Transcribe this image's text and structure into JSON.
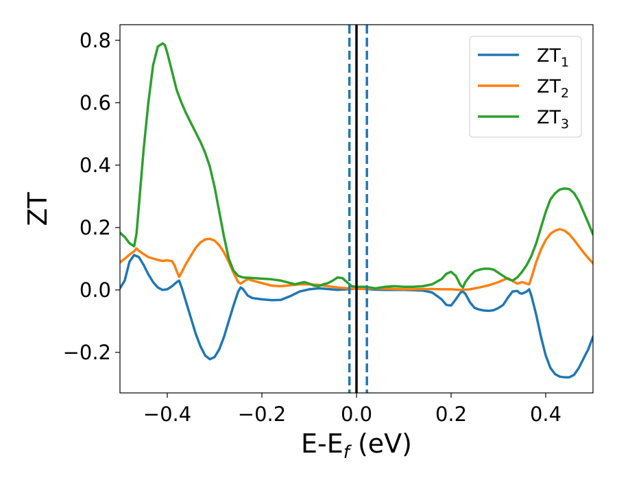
{
  "chart_data": {
    "type": "line",
    "xlabel": "E-E",
    "xlabel_sub": "f",
    "xlabel_unit": " (eV)",
    "ylabel": "ZT",
    "xlim": [
      -0.5,
      0.5
    ],
    "ylim": [
      -0.33,
      0.85
    ],
    "xticks": [
      -0.4,
      -0.2,
      0.0,
      0.2,
      0.4
    ],
    "xtick_labels": [
      "−0.4",
      "−0.2",
      "0.0",
      "0.2",
      "0.4"
    ],
    "yticks": [
      -0.2,
      0.0,
      0.2,
      0.4,
      0.6,
      0.8
    ],
    "ytick_labels": [
      "−0.2",
      "0.0",
      "0.2",
      "0.4",
      "0.6",
      "0.8"
    ],
    "grid": false,
    "legend_position": "top-right",
    "vertical_lines": [
      {
        "x": 0.0,
        "style": "solid",
        "color": "#000000"
      },
      {
        "x": -0.015,
        "style": "dashed",
        "color": "#1f77b4"
      },
      {
        "x": 0.022,
        "style": "dashed",
        "color": "#1f77b4"
      }
    ],
    "series": [
      {
        "name": "ZT",
        "sub": "1",
        "color": "#1f77b4",
        "points": [
          [
            -0.5,
            0.005
          ],
          [
            -0.49,
            0.03
          ],
          [
            -0.48,
            0.09
          ],
          [
            -0.47,
            0.112
          ],
          [
            -0.46,
            0.105
          ],
          [
            -0.45,
            0.08
          ],
          [
            -0.44,
            0.05
          ],
          [
            -0.43,
            0.025
          ],
          [
            -0.42,
            0.008
          ],
          [
            -0.41,
            0.0
          ],
          [
            -0.4,
            0.002
          ],
          [
            -0.39,
            0.012
          ],
          [
            -0.38,
            0.025
          ],
          [
            -0.375,
            0.03
          ],
          [
            -0.37,
            0.01
          ],
          [
            -0.36,
            -0.04
          ],
          [
            -0.35,
            -0.09
          ],
          [
            -0.34,
            -0.14
          ],
          [
            -0.33,
            -0.18
          ],
          [
            -0.32,
            -0.21
          ],
          [
            -0.31,
            -0.222
          ],
          [
            -0.3,
            -0.215
          ],
          [
            -0.29,
            -0.19
          ],
          [
            -0.28,
            -0.15
          ],
          [
            -0.27,
            -0.1
          ],
          [
            -0.26,
            -0.05
          ],
          [
            -0.25,
            -0.005
          ],
          [
            -0.245,
            0.008
          ],
          [
            -0.24,
            0.003
          ],
          [
            -0.23,
            -0.018
          ],
          [
            -0.22,
            -0.026
          ],
          [
            -0.2,
            -0.03
          ],
          [
            -0.18,
            -0.033
          ],
          [
            -0.16,
            -0.032
          ],
          [
            -0.14,
            -0.02
          ],
          [
            -0.12,
            -0.005
          ],
          [
            -0.1,
            0.002
          ],
          [
            -0.08,
            0.005
          ],
          [
            -0.06,
            0.003
          ],
          [
            -0.04,
            0.0
          ],
          [
            -0.02,
            0.002
          ],
          [
            0.0,
            0.004
          ],
          [
            0.02,
            0.003
          ],
          [
            0.04,
            0.001
          ],
          [
            0.06,
            0.0
          ],
          [
            0.08,
            0.0
          ],
          [
            0.1,
            0.0
          ],
          [
            0.12,
            -0.001
          ],
          [
            0.14,
            -0.002
          ],
          [
            0.16,
            -0.008
          ],
          [
            0.18,
            -0.03
          ],
          [
            0.19,
            -0.048
          ],
          [
            0.2,
            -0.05
          ],
          [
            0.21,
            -0.03
          ],
          [
            0.22,
            -0.008
          ],
          [
            0.225,
            -0.005
          ],
          [
            0.23,
            -0.012
          ],
          [
            0.24,
            -0.04
          ],
          [
            0.25,
            -0.058
          ],
          [
            0.26,
            -0.063
          ],
          [
            0.27,
            -0.066
          ],
          [
            0.28,
            -0.067
          ],
          [
            0.29,
            -0.065
          ],
          [
            0.3,
            -0.058
          ],
          [
            0.31,
            -0.048
          ],
          [
            0.32,
            -0.025
          ],
          [
            0.33,
            -0.005
          ],
          [
            0.34,
            -0.003
          ],
          [
            0.345,
            -0.01
          ],
          [
            0.35,
            -0.012
          ],
          [
            0.36,
            -0.005
          ],
          [
            0.365,
            0.002
          ],
          [
            0.37,
            -0.02
          ],
          [
            0.38,
            -0.08
          ],
          [
            0.39,
            -0.15
          ],
          [
            0.4,
            -0.21
          ],
          [
            0.41,
            -0.25
          ],
          [
            0.42,
            -0.27
          ],
          [
            0.43,
            -0.278
          ],
          [
            0.44,
            -0.28
          ],
          [
            0.45,
            -0.28
          ],
          [
            0.46,
            -0.272
          ],
          [
            0.47,
            -0.25
          ],
          [
            0.48,
            -0.22
          ],
          [
            0.49,
            -0.19
          ],
          [
            0.5,
            -0.15
          ]
        ]
      },
      {
        "name": "ZT",
        "sub": "2",
        "color": "#ff7f0e",
        "points": [
          [
            -0.5,
            0.088
          ],
          [
            -0.49,
            0.1
          ],
          [
            -0.48,
            0.113
          ],
          [
            -0.47,
            0.124
          ],
          [
            -0.465,
            0.133
          ],
          [
            -0.46,
            0.125
          ],
          [
            -0.45,
            0.115
          ],
          [
            -0.44,
            0.105
          ],
          [
            -0.42,
            0.096
          ],
          [
            -0.41,
            0.093
          ],
          [
            -0.4,
            0.095
          ],
          [
            -0.39,
            0.092
          ],
          [
            -0.385,
            0.08
          ],
          [
            -0.38,
            0.06
          ],
          [
            -0.375,
            0.042
          ],
          [
            -0.37,
            0.055
          ],
          [
            -0.36,
            0.085
          ],
          [
            -0.35,
            0.11
          ],
          [
            -0.34,
            0.135
          ],
          [
            -0.33,
            0.152
          ],
          [
            -0.32,
            0.162
          ],
          [
            -0.31,
            0.164
          ],
          [
            -0.3,
            0.158
          ],
          [
            -0.29,
            0.143
          ],
          [
            -0.28,
            0.12
          ],
          [
            -0.27,
            0.09
          ],
          [
            -0.26,
            0.055
          ],
          [
            -0.25,
            0.025
          ],
          [
            -0.245,
            0.02
          ],
          [
            -0.24,
            0.025
          ],
          [
            -0.23,
            0.035
          ],
          [
            -0.22,
            0.03
          ],
          [
            -0.2,
            0.022
          ],
          [
            -0.18,
            0.014
          ],
          [
            -0.16,
            0.012
          ],
          [
            -0.14,
            0.015
          ],
          [
            -0.12,
            0.018
          ],
          [
            -0.1,
            0.018
          ],
          [
            -0.08,
            0.016
          ],
          [
            -0.06,
            0.012
          ],
          [
            -0.04,
            0.008
          ],
          [
            -0.02,
            0.005
          ],
          [
            0.0,
            0.003
          ],
          [
            0.02,
            0.004
          ],
          [
            0.04,
            0.005
          ],
          [
            0.06,
            0.004
          ],
          [
            0.08,
            0.003
          ],
          [
            0.1,
            0.002
          ],
          [
            0.12,
            0.002
          ],
          [
            0.14,
            0.003
          ],
          [
            0.16,
            0.003
          ],
          [
            0.18,
            0.002
          ],
          [
            0.2,
            0.002
          ],
          [
            0.22,
            0.0
          ],
          [
            0.24,
            0.002
          ],
          [
            0.26,
            0.008
          ],
          [
            0.28,
            0.015
          ],
          [
            0.3,
            0.025
          ],
          [
            0.32,
            0.038
          ],
          [
            0.34,
            0.02
          ],
          [
            0.35,
            0.025
          ],
          [
            0.36,
            0.02
          ],
          [
            0.365,
            0.018
          ],
          [
            0.37,
            0.04
          ],
          [
            0.38,
            0.09
          ],
          [
            0.39,
            0.13
          ],
          [
            0.4,
            0.16
          ],
          [
            0.41,
            0.18
          ],
          [
            0.42,
            0.19
          ],
          [
            0.43,
            0.195
          ],
          [
            0.44,
            0.19
          ],
          [
            0.45,
            0.178
          ],
          [
            0.46,
            0.16
          ],
          [
            0.47,
            0.14
          ],
          [
            0.48,
            0.12
          ],
          [
            0.49,
            0.102
          ],
          [
            0.5,
            0.085
          ]
        ]
      },
      {
        "name": "ZT",
        "sub": "3",
        "color": "#2ca02c",
        "points": [
          [
            -0.5,
            0.183
          ],
          [
            -0.49,
            0.17
          ],
          [
            -0.48,
            0.15
          ],
          [
            -0.47,
            0.14
          ],
          [
            -0.465,
            0.18
          ],
          [
            -0.46,
            0.27
          ],
          [
            -0.45,
            0.45
          ],
          [
            -0.44,
            0.6
          ],
          [
            -0.43,
            0.72
          ],
          [
            -0.42,
            0.78
          ],
          [
            -0.41,
            0.79
          ],
          [
            -0.405,
            0.785
          ],
          [
            -0.4,
            0.76
          ],
          [
            -0.39,
            0.7
          ],
          [
            -0.38,
            0.64
          ],
          [
            -0.37,
            0.6
          ],
          [
            -0.36,
            0.565
          ],
          [
            -0.35,
            0.535
          ],
          [
            -0.34,
            0.505
          ],
          [
            -0.33,
            0.475
          ],
          [
            -0.32,
            0.44
          ],
          [
            -0.31,
            0.395
          ],
          [
            -0.3,
            0.33
          ],
          [
            -0.29,
            0.25
          ],
          [
            -0.28,
            0.17
          ],
          [
            -0.27,
            0.1
          ],
          [
            -0.26,
            0.062
          ],
          [
            -0.25,
            0.045
          ],
          [
            -0.24,
            0.04
          ],
          [
            -0.22,
            0.038
          ],
          [
            -0.2,
            0.036
          ],
          [
            -0.18,
            0.034
          ],
          [
            -0.16,
            0.03
          ],
          [
            -0.14,
            0.022
          ],
          [
            -0.13,
            0.018
          ],
          [
            -0.12,
            0.022
          ],
          [
            -0.11,
            0.025
          ],
          [
            -0.1,
            0.02
          ],
          [
            -0.09,
            0.014
          ],
          [
            -0.08,
            0.012
          ],
          [
            -0.07,
            0.018
          ],
          [
            -0.06,
            0.022
          ],
          [
            -0.05,
            0.03
          ],
          [
            -0.04,
            0.04
          ],
          [
            -0.03,
            0.038
          ],
          [
            -0.02,
            0.025
          ],
          [
            -0.01,
            0.012
          ],
          [
            0.0,
            0.01
          ],
          [
            0.02,
            0.01
          ],
          [
            0.04,
            0.005
          ],
          [
            0.06,
            0.01
          ],
          [
            0.08,
            0.012
          ],
          [
            0.1,
            0.01
          ],
          [
            0.12,
            0.01
          ],
          [
            0.14,
            0.012
          ],
          [
            0.16,
            0.018
          ],
          [
            0.18,
            0.035
          ],
          [
            0.19,
            0.052
          ],
          [
            0.2,
            0.058
          ],
          [
            0.21,
            0.045
          ],
          [
            0.22,
            0.015
          ],
          [
            0.225,
            0.008
          ],
          [
            0.23,
            0.025
          ],
          [
            0.24,
            0.045
          ],
          [
            0.25,
            0.06
          ],
          [
            0.26,
            0.065
          ],
          [
            0.27,
            0.068
          ],
          [
            0.28,
            0.068
          ],
          [
            0.29,
            0.065
          ],
          [
            0.3,
            0.055
          ],
          [
            0.31,
            0.045
          ],
          [
            0.32,
            0.035
          ],
          [
            0.33,
            0.03
          ],
          [
            0.34,
            0.04
          ],
          [
            0.35,
            0.058
          ],
          [
            0.36,
            0.08
          ],
          [
            0.37,
            0.11
          ],
          [
            0.38,
            0.15
          ],
          [
            0.39,
            0.2
          ],
          [
            0.4,
            0.25
          ],
          [
            0.41,
            0.29
          ],
          [
            0.42,
            0.31
          ],
          [
            0.43,
            0.322
          ],
          [
            0.44,
            0.325
          ],
          [
            0.45,
            0.323
          ],
          [
            0.46,
            0.31
          ],
          [
            0.47,
            0.285
          ],
          [
            0.48,
            0.25
          ],
          [
            0.49,
            0.215
          ],
          [
            0.5,
            0.178
          ]
        ]
      }
    ]
  }
}
